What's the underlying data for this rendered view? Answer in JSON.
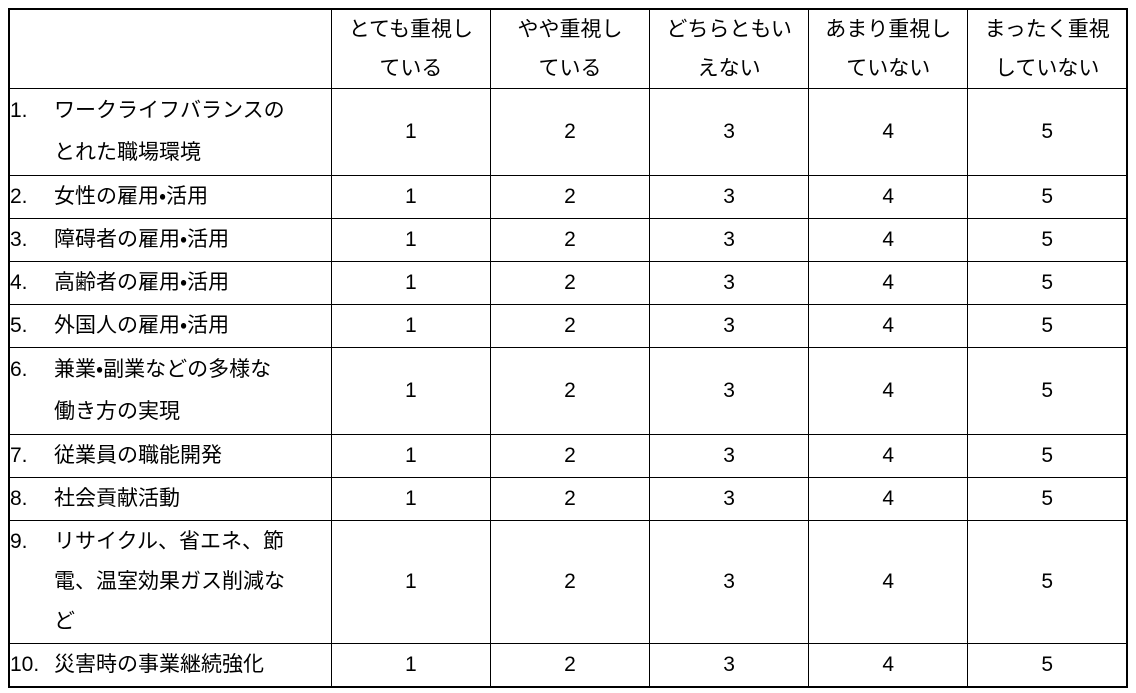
{
  "survey_table": {
    "options": [
      {
        "label": "とても重視し\nている"
      },
      {
        "label": "やや重視し\nている"
      },
      {
        "label": "どちらともい\nえない"
      },
      {
        "label": "あまり重視し\nていない"
      },
      {
        "label": "まったく重視\nしていない"
      }
    ],
    "items": [
      {
        "num": "1.",
        "label": "ワークライフバランスの\nとれた職場環境",
        "values": [
          "1",
          "2",
          "3",
          "4",
          "5"
        ]
      },
      {
        "num": "2.",
        "label": "女性の雇用・活用",
        "values": [
          "1",
          "2",
          "3",
          "4",
          "5"
        ]
      },
      {
        "num": "3.",
        "label": "障碍者の雇用・活用",
        "values": [
          "1",
          "2",
          "3",
          "4",
          "5"
        ]
      },
      {
        "num": "4.",
        "label": "高齢者の雇用・活用",
        "values": [
          "1",
          "2",
          "3",
          "4",
          "5"
        ]
      },
      {
        "num": "5.",
        "label": "外国人の雇用・活用",
        "values": [
          "1",
          "2",
          "3",
          "4",
          "5"
        ]
      },
      {
        "num": "6.",
        "label": "兼業・副業などの多様な\n働き方の実現",
        "values": [
          "1",
          "2",
          "3",
          "4",
          "5"
        ]
      },
      {
        "num": "7.",
        "label": "従業員の職能開発",
        "values": [
          "1",
          "2",
          "3",
          "4",
          "5"
        ]
      },
      {
        "num": "8.",
        "label": "社会貢献活動",
        "values": [
          "1",
          "2",
          "3",
          "4",
          "5"
        ]
      },
      {
        "num": "9.",
        "label": "リサイクル、省エネ、節\n電、温室効果ガス削減な\nど",
        "values": [
          "1",
          "2",
          "3",
          "4",
          "5"
        ]
      },
      {
        "num": "10.",
        "label": "災害時の事業継続強化",
        "values": [
          "1",
          "2",
          "3",
          "4",
          "5"
        ]
      }
    ]
  }
}
